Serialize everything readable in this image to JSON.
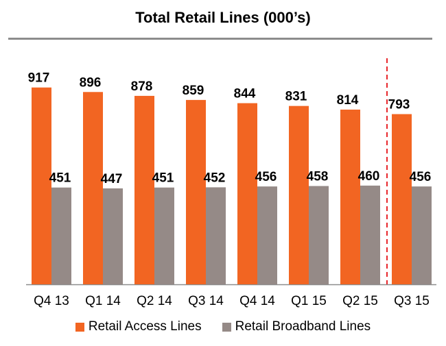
{
  "chart_data": {
    "type": "bar",
    "title": "Total Retail Lines (000’s)",
    "categories": [
      "Q4 13",
      "Q1 14",
      "Q2 14",
      "Q3 14",
      "Q4 14",
      "Q1 15",
      "Q2 15",
      "Q3 15"
    ],
    "series": [
      {
        "name": "Retail Access Lines",
        "color": "#f26522",
        "values": [
          917,
          896,
          878,
          859,
          844,
          831,
          814,
          793
        ]
      },
      {
        "name": "Retail Broadband Lines",
        "color": "#958a87",
        "values": [
          451,
          447,
          451,
          452,
          456,
          458,
          460,
          456
        ]
      }
    ],
    "ylim": [
      0,
      1000
    ],
    "grid": false,
    "legend": "bottom",
    "divider": {
      "between": [
        "Q2 15",
        "Q3 15"
      ],
      "color": "#e8262b",
      "style": "dashed"
    }
  }
}
